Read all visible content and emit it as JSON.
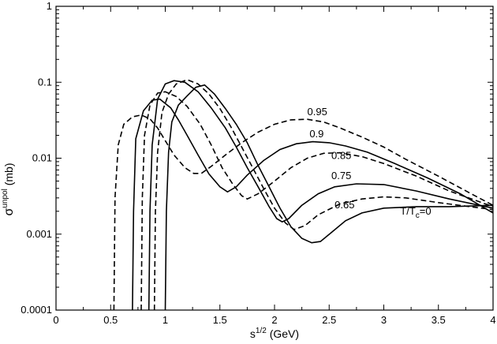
{
  "chart_data": {
    "type": "line",
    "title": "",
    "xlabel": {
      "base": "s",
      "sup": "1/2",
      "unit": " (GeV)"
    },
    "ylabel": {
      "base": "σ",
      "sup": "unpol",
      "unit": " (mb)"
    },
    "xlim": [
      0,
      4
    ],
    "ylim": [
      0.0001,
      1
    ],
    "yscale": "log",
    "grid": false,
    "x_ticks": [
      0,
      0.5,
      1,
      1.5,
      2,
      2.5,
      3,
      3.5,
      4
    ],
    "x_tick_labels": [
      "0",
      "0.5",
      "1",
      "1.5",
      "2",
      "2.5",
      "3",
      "3.5",
      "4"
    ],
    "y_ticks": [
      0.0001,
      0.001,
      0.01,
      0.1,
      1
    ],
    "y_tick_labels": [
      "0.0001",
      "0.001",
      "0.01",
      "0.1",
      "1"
    ],
    "series": [
      {
        "label": "T/Tc=0",
        "label_main": "T/T",
        "label_sub": "c",
        "label_end": "=0",
        "label_pos": [
          3.15,
          0.0018
        ],
        "style": "solid",
        "points": [
          [
            1.0,
            0.0001
          ],
          [
            1.01,
            0.002
          ],
          [
            1.03,
            0.012
          ],
          [
            1.06,
            0.03
          ],
          [
            1.12,
            0.05
          ],
          [
            1.2,
            0.066
          ],
          [
            1.28,
            0.086
          ],
          [
            1.36,
            0.092
          ],
          [
            1.45,
            0.07
          ],
          [
            1.55,
            0.045
          ],
          [
            1.65,
            0.028
          ],
          [
            1.75,
            0.016
          ],
          [
            1.85,
            0.008
          ],
          [
            1.95,
            0.0042
          ],
          [
            2.05,
            0.0022
          ],
          [
            2.15,
            0.00125
          ],
          [
            2.25,
            0.00088
          ],
          [
            2.34,
            0.00077
          ],
          [
            2.42,
            0.0008
          ],
          [
            2.52,
            0.00105
          ],
          [
            2.65,
            0.0015
          ],
          [
            2.8,
            0.0019
          ],
          [
            3.0,
            0.0022
          ],
          [
            3.3,
            0.0023
          ],
          [
            3.6,
            0.0023
          ],
          [
            4.0,
            0.0024
          ]
        ]
      },
      {
        "label": "0.65",
        "label_pos": [
          2.55,
          0.0022
        ],
        "style": "dashed",
        "points": [
          [
            0.9,
            0.0001
          ],
          [
            0.91,
            0.002
          ],
          [
            0.93,
            0.012
          ],
          [
            0.97,
            0.04
          ],
          [
            1.03,
            0.07
          ],
          [
            1.1,
            0.095
          ],
          [
            1.2,
            0.108
          ],
          [
            1.3,
            0.095
          ],
          [
            1.4,
            0.07
          ],
          [
            1.5,
            0.045
          ],
          [
            1.6,
            0.026
          ],
          [
            1.7,
            0.014
          ],
          [
            1.8,
            0.0075
          ],
          [
            1.9,
            0.004
          ],
          [
            2.0,
            0.0022
          ],
          [
            2.1,
            0.0014
          ],
          [
            2.18,
            0.00115
          ],
          [
            2.28,
            0.0013
          ],
          [
            2.4,
            0.0018
          ],
          [
            2.6,
            0.0025
          ],
          [
            2.8,
            0.0029
          ],
          [
            3.0,
            0.0031
          ],
          [
            3.2,
            0.003
          ],
          [
            3.5,
            0.0026
          ],
          [
            4.0,
            0.0021
          ]
        ]
      },
      {
        "label": "0.75",
        "label_pos": [
          2.52,
          0.0053
        ],
        "style": "solid",
        "points": [
          [
            0.85,
            0.0001
          ],
          [
            0.86,
            0.002
          ],
          [
            0.88,
            0.015
          ],
          [
            0.93,
            0.06
          ],
          [
            1.0,
            0.095
          ],
          [
            1.08,
            0.105
          ],
          [
            1.18,
            0.1
          ],
          [
            1.3,
            0.075
          ],
          [
            1.42,
            0.046
          ],
          [
            1.55,
            0.025
          ],
          [
            1.65,
            0.014
          ],
          [
            1.75,
            0.0075
          ],
          [
            1.85,
            0.0042
          ],
          [
            1.95,
            0.0023
          ],
          [
            2.02,
            0.0016
          ],
          [
            2.07,
            0.00145
          ],
          [
            2.13,
            0.0016
          ],
          [
            2.25,
            0.0024
          ],
          [
            2.4,
            0.0034
          ],
          [
            2.55,
            0.0042
          ],
          [
            2.75,
            0.0046
          ],
          [
            3.0,
            0.0045
          ],
          [
            3.3,
            0.0037
          ],
          [
            3.6,
            0.0029
          ],
          [
            4.0,
            0.0022
          ]
        ]
      },
      {
        "label": "0.85",
        "label_pos": [
          2.52,
          0.0098
        ],
        "style": "dashed",
        "points": [
          [
            0.78,
            0.0001
          ],
          [
            0.79,
            0.003
          ],
          [
            0.81,
            0.02
          ],
          [
            0.86,
            0.05
          ],
          [
            0.93,
            0.072
          ],
          [
            1.0,
            0.075
          ],
          [
            1.1,
            0.065
          ],
          [
            1.2,
            0.048
          ],
          [
            1.32,
            0.028
          ],
          [
            1.42,
            0.015
          ],
          [
            1.52,
            0.0075
          ],
          [
            1.62,
            0.0045
          ],
          [
            1.7,
            0.0032
          ],
          [
            1.75,
            0.0029
          ],
          [
            1.85,
            0.0034
          ],
          [
            2.0,
            0.005
          ],
          [
            2.15,
            0.0075
          ],
          [
            2.3,
            0.01
          ],
          [
            2.45,
            0.0116
          ],
          [
            2.6,
            0.0118
          ],
          [
            2.8,
            0.0105
          ],
          [
            3.0,
            0.0085
          ],
          [
            3.3,
            0.0058
          ],
          [
            3.6,
            0.0037
          ],
          [
            4.0,
            0.0023
          ]
        ]
      },
      {
        "label": "0.9",
        "label_pos": [
          2.32,
          0.0188
        ],
        "style": "solid",
        "points": [
          [
            0.7,
            0.0001
          ],
          [
            0.71,
            0.002
          ],
          [
            0.73,
            0.018
          ],
          [
            0.8,
            0.042
          ],
          [
            0.88,
            0.058
          ],
          [
            0.95,
            0.06
          ],
          [
            1.05,
            0.046
          ],
          [
            1.12,
            0.032
          ],
          [
            1.2,
            0.02
          ],
          [
            1.3,
            0.011
          ],
          [
            1.4,
            0.0062
          ],
          [
            1.5,
            0.0042
          ],
          [
            1.57,
            0.0036
          ],
          [
            1.65,
            0.0042
          ],
          [
            1.75,
            0.006
          ],
          [
            1.9,
            0.0093
          ],
          [
            2.05,
            0.013
          ],
          [
            2.2,
            0.0155
          ],
          [
            2.35,
            0.0165
          ],
          [
            2.5,
            0.016
          ],
          [
            2.65,
            0.0145
          ],
          [
            2.85,
            0.012
          ],
          [
            3.1,
            0.0085
          ],
          [
            3.4,
            0.0055
          ],
          [
            3.7,
            0.0034
          ],
          [
            4.0,
            0.0019
          ]
        ]
      },
      {
        "label": "0.95",
        "label_pos": [
          2.3,
          0.037
        ],
        "style": "dashed",
        "points": [
          [
            0.53,
            0.0001
          ],
          [
            0.54,
            0.003
          ],
          [
            0.57,
            0.015
          ],
          [
            0.62,
            0.028
          ],
          [
            0.7,
            0.035
          ],
          [
            0.78,
            0.037
          ],
          [
            0.86,
            0.033
          ],
          [
            0.93,
            0.025
          ],
          [
            1.0,
            0.017
          ],
          [
            1.08,
            0.011
          ],
          [
            1.18,
            0.0075
          ],
          [
            1.26,
            0.0063
          ],
          [
            1.33,
            0.0063
          ],
          [
            1.42,
            0.0078
          ],
          [
            1.55,
            0.011
          ],
          [
            1.7,
            0.016
          ],
          [
            1.85,
            0.022
          ],
          [
            2.0,
            0.028
          ],
          [
            2.15,
            0.032
          ],
          [
            2.3,
            0.0325
          ],
          [
            2.45,
            0.03
          ],
          [
            2.6,
            0.025
          ],
          [
            2.8,
            0.019
          ],
          [
            3.0,
            0.014
          ],
          [
            3.2,
            0.0097
          ],
          [
            3.5,
            0.0058
          ],
          [
            3.8,
            0.0034
          ],
          [
            4.0,
            0.0024
          ]
        ]
      }
    ]
  }
}
